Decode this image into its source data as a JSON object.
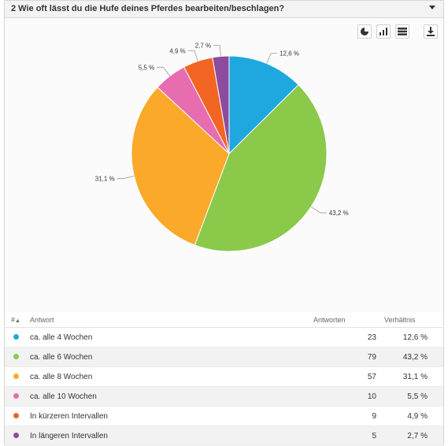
{
  "question": {
    "title": "2 Wie oft lässt du die Hufe deines Pferdes bearbeiten/beschlagen?"
  },
  "toolbar": {
    "icons": [
      "pie-chart-icon",
      "bar-chart-icon",
      "table-icon",
      "download-icon"
    ]
  },
  "table": {
    "col_index": "#",
    "sort_indicator": "▲",
    "col_answer": "Antwort",
    "col_count": "Antworten",
    "col_ratio": "Verhältnis"
  },
  "chart_data": {
    "type": "pie",
    "categories": [
      "ca. alle 4 Wochen",
      "ca. alle 6 Wochen",
      "ca. alle 8 Wochen",
      "ca. alle 10 Wochen",
      "In kürzeren Intervallen",
      "In längeren Intervallen"
    ],
    "values": [
      23,
      79,
      57,
      10,
      9,
      5
    ],
    "labels": [
      "12,6 %",
      "43,2 %",
      "31,1 %",
      "5,5 %",
      "4,9 %",
      "2,7 %"
    ],
    "colors": [
      "#1fa8e0",
      "#8bc94a",
      "#fba92b",
      "#e86cb0",
      "#f26522",
      "#8e4c9e"
    ]
  }
}
